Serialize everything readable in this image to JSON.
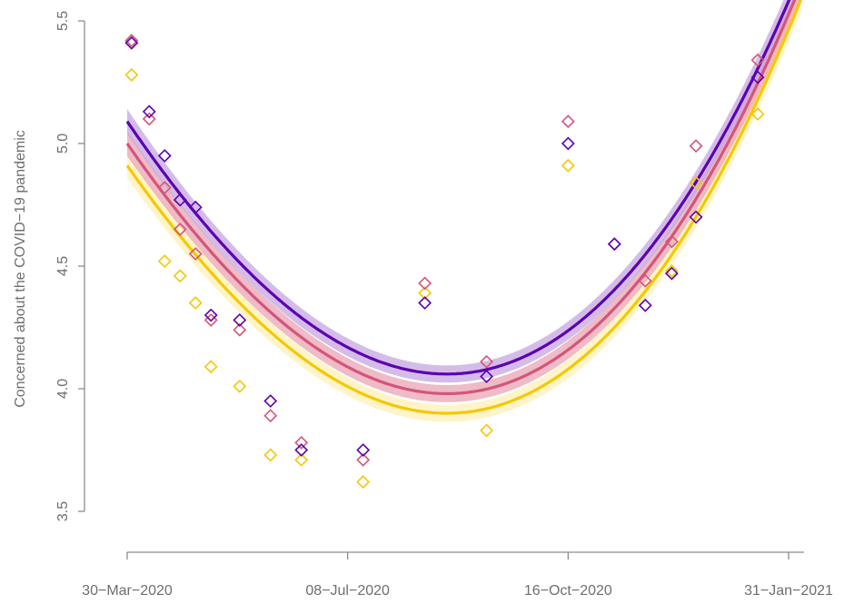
{
  "chart_data": {
    "type": "scatter",
    "title": "",
    "xlabel": "",
    "ylabel": "Concerned about the COVID−19 pandemic",
    "x_ticks": [
      "30−Mar−2020",
      "08−Jul−2020",
      "16−Oct−2020",
      "31−Jan−2021"
    ],
    "y_ticks": [
      "3.5",
      "4.0",
      "4.5",
      "5.0",
      "5.5"
    ],
    "xlim": [
      "2020-03-30",
      "2021-01-31"
    ],
    "ylim": [
      3.5,
      5.5
    ],
    "grid": false,
    "legend": null,
    "series": [
      {
        "color": "#5b00b0",
        "band_color": "#c6a6e0",
        "fit": {
          "vertex_x": "2020-08-22",
          "vertex_y": 4.06,
          "start_y": 5.09,
          "end_y": 5.73
        },
        "points": [
          {
            "x": "2020-04-01",
            "y": 5.41
          },
          {
            "x": "2020-04-09",
            "y": 5.13
          },
          {
            "x": "2020-04-16",
            "y": 4.95
          },
          {
            "x": "2020-04-23",
            "y": 4.77
          },
          {
            "x": "2020-04-30",
            "y": 4.74
          },
          {
            "x": "2020-05-07",
            "y": 4.3
          },
          {
            "x": "2020-05-20",
            "y": 4.28
          },
          {
            "x": "2020-06-03",
            "y": 3.95
          },
          {
            "x": "2020-06-17",
            "y": 3.75
          },
          {
            "x": "2020-07-15",
            "y": 3.75
          },
          {
            "x": "2020-08-12",
            "y": 4.35
          },
          {
            "x": "2020-09-09",
            "y": 4.05
          },
          {
            "x": "2020-10-16",
            "y": 5.0
          },
          {
            "x": "2020-11-06",
            "y": 4.59
          },
          {
            "x": "2020-11-20",
            "y": 4.34
          },
          {
            "x": "2020-12-02",
            "y": 4.47
          },
          {
            "x": "2020-12-13",
            "y": 4.7
          },
          {
            "x": "2021-01-10",
            "y": 5.27
          }
        ]
      },
      {
        "color": "#d4557a",
        "band_color": "#e8a4b4",
        "fit": {
          "vertex_x": "2020-08-22",
          "vertex_y": 3.98,
          "start_y": 5.0,
          "end_y": 5.68
        },
        "points": [
          {
            "x": "2020-04-01",
            "y": 5.42
          },
          {
            "x": "2020-04-09",
            "y": 5.1
          },
          {
            "x": "2020-04-16",
            "y": 4.82
          },
          {
            "x": "2020-04-23",
            "y": 4.65
          },
          {
            "x": "2020-04-30",
            "y": 4.55
          },
          {
            "x": "2020-05-07",
            "y": 4.28
          },
          {
            "x": "2020-05-20",
            "y": 4.24
          },
          {
            "x": "2020-06-03",
            "y": 3.89
          },
          {
            "x": "2020-06-17",
            "y": 3.78
          },
          {
            "x": "2020-07-15",
            "y": 3.71
          },
          {
            "x": "2020-08-12",
            "y": 4.43
          },
          {
            "x": "2020-09-09",
            "y": 4.11
          },
          {
            "x": "2020-10-16",
            "y": 5.09
          },
          {
            "x": "2020-11-06",
            "y": 4.59
          },
          {
            "x": "2020-11-20",
            "y": 4.44
          },
          {
            "x": "2020-12-02",
            "y": 4.6
          },
          {
            "x": "2020-12-13",
            "y": 4.99
          },
          {
            "x": "2021-01-10",
            "y": 5.34
          }
        ]
      },
      {
        "color": "#f5c800",
        "band_color": "#fdf0b5",
        "fit": {
          "vertex_x": "2020-08-22",
          "vertex_y": 3.9,
          "start_y": 4.91,
          "end_y": 5.62
        },
        "points": [
          {
            "x": "2020-04-01",
            "y": 5.28
          },
          {
            "x": "2020-04-16",
            "y": 4.52
          },
          {
            "x": "2020-04-23",
            "y": 4.46
          },
          {
            "x": "2020-04-30",
            "y": 4.35
          },
          {
            "x": "2020-05-07",
            "y": 4.09
          },
          {
            "x": "2020-05-20",
            "y": 4.01
          },
          {
            "x": "2020-06-03",
            "y": 3.73
          },
          {
            "x": "2020-06-17",
            "y": 3.71
          },
          {
            "x": "2020-07-15",
            "y": 3.62
          },
          {
            "x": "2020-08-12",
            "y": 4.39
          },
          {
            "x": "2020-09-09",
            "y": 3.83
          },
          {
            "x": "2020-10-16",
            "y": 4.91
          },
          {
            "x": "2020-12-02",
            "y": 4.48
          },
          {
            "x": "2020-12-13",
            "y": 4.84
          },
          {
            "x": "2021-01-10",
            "y": 5.12
          }
        ]
      }
    ]
  }
}
